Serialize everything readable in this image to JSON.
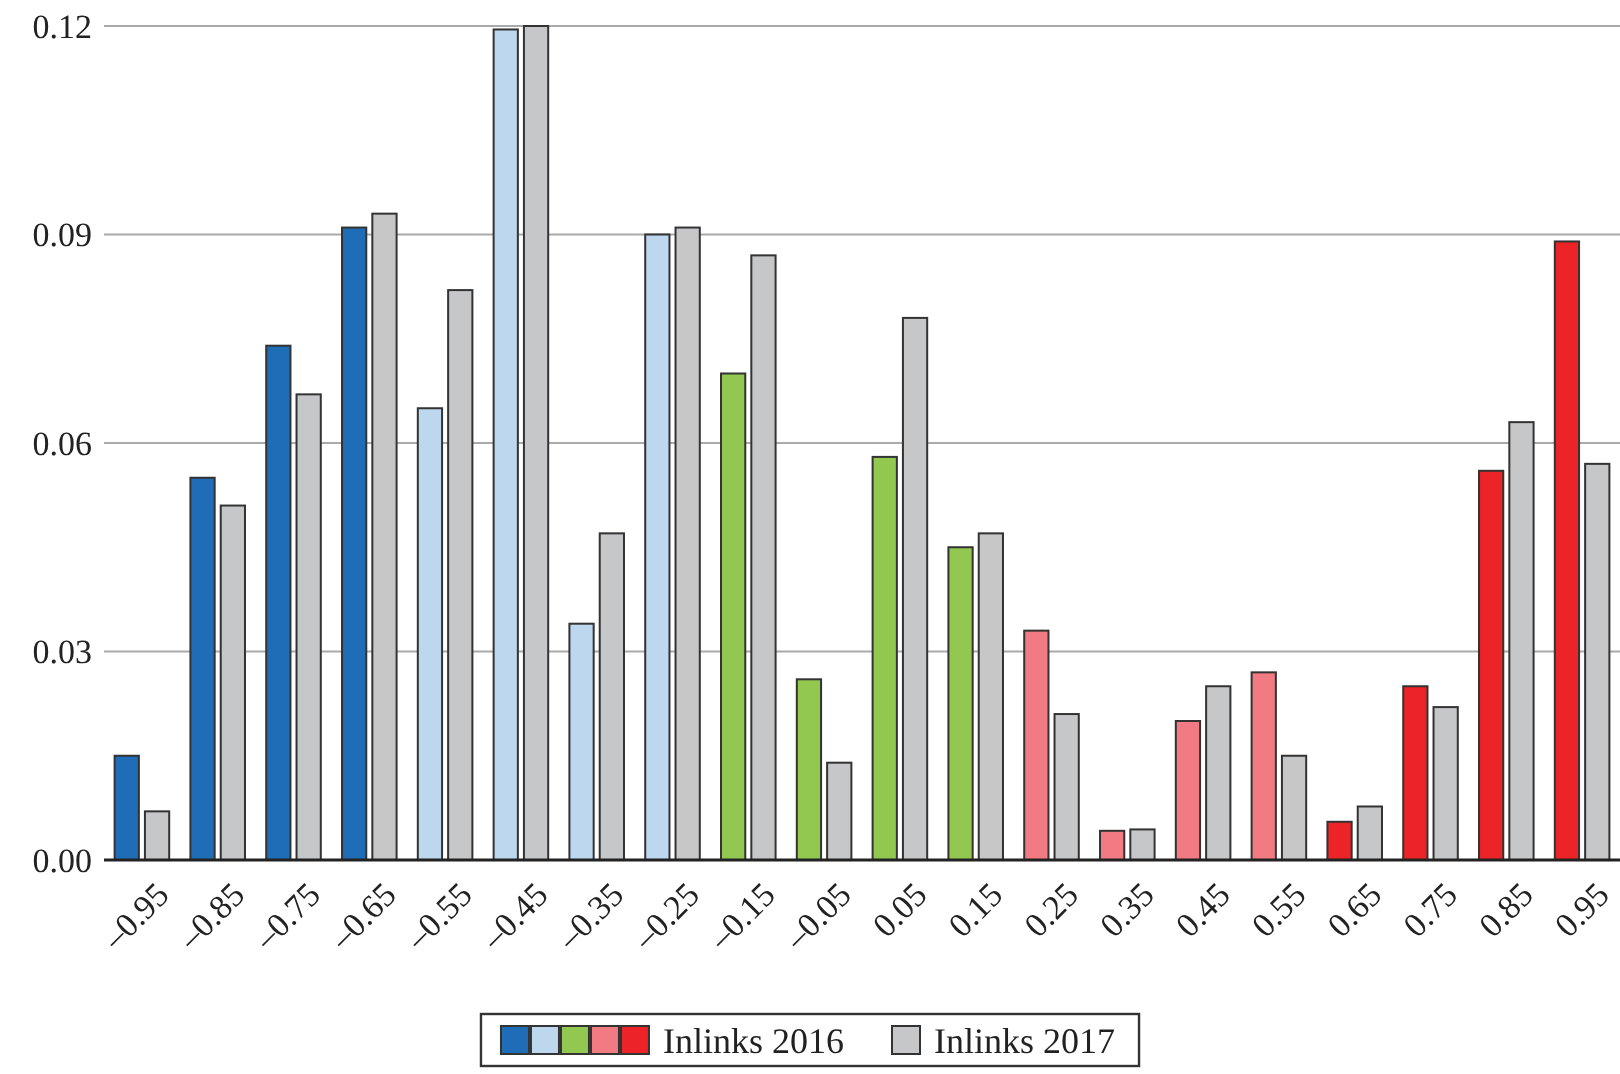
{
  "chart_data": {
    "type": "bar",
    "categories": [
      "–0.95",
      "–0.85",
      "–0.75",
      "–0.65",
      "–0.55",
      "–0.45",
      "–0.35",
      "–0.25",
      "–0.15",
      "–0.05",
      "0.05",
      "0.15",
      "0.25",
      "0.35",
      "0.45",
      "0.55",
      "0.65",
      "0.75",
      "0.85",
      "0.95"
    ],
    "series": [
      {
        "name": "Inlinks 2016",
        "colors": [
          "#1f6db6",
          "#1f6db6",
          "#1f6db6",
          "#1f6db6",
          "#bdd7ee",
          "#bdd7ee",
          "#bdd7ee",
          "#bdd7ee",
          "#92c850",
          "#92c850",
          "#92c850",
          "#92c850",
          "#f27a82",
          "#f27a82",
          "#f27a82",
          "#f27a82",
          "#ec2327",
          "#ec2327",
          "#ec2327",
          "#ec2327"
        ],
        "values": [
          0.015,
          0.055,
          0.074,
          0.091,
          0.065,
          0.1195,
          0.034,
          0.09,
          0.07,
          0.026,
          0.058,
          0.045,
          0.033,
          0.0042,
          0.02,
          0.027,
          0.0055,
          0.025,
          0.056,
          0.089
        ]
      },
      {
        "name": "Inlinks 2017",
        "color": "#c6c7c9",
        "values": [
          0.007,
          0.051,
          0.067,
          0.093,
          0.082,
          0.12,
          0.047,
          0.091,
          0.087,
          0.014,
          0.078,
          0.047,
          0.021,
          0.0044,
          0.025,
          0.015,
          0.0077,
          0.022,
          0.063,
          0.057
        ]
      }
    ],
    "ylim": [
      0,
      0.12
    ],
    "yticks": [
      {
        "value": 0,
        "label": "0.00"
      },
      {
        "value": 0.03,
        "label": "0.03"
      },
      {
        "value": 0.06,
        "label": "0.06"
      },
      {
        "value": 0.09,
        "label": "0.09"
      },
      {
        "value": 0.12,
        "label": "0.12"
      }
    ],
    "grid": "y",
    "legend": "bottom"
  }
}
